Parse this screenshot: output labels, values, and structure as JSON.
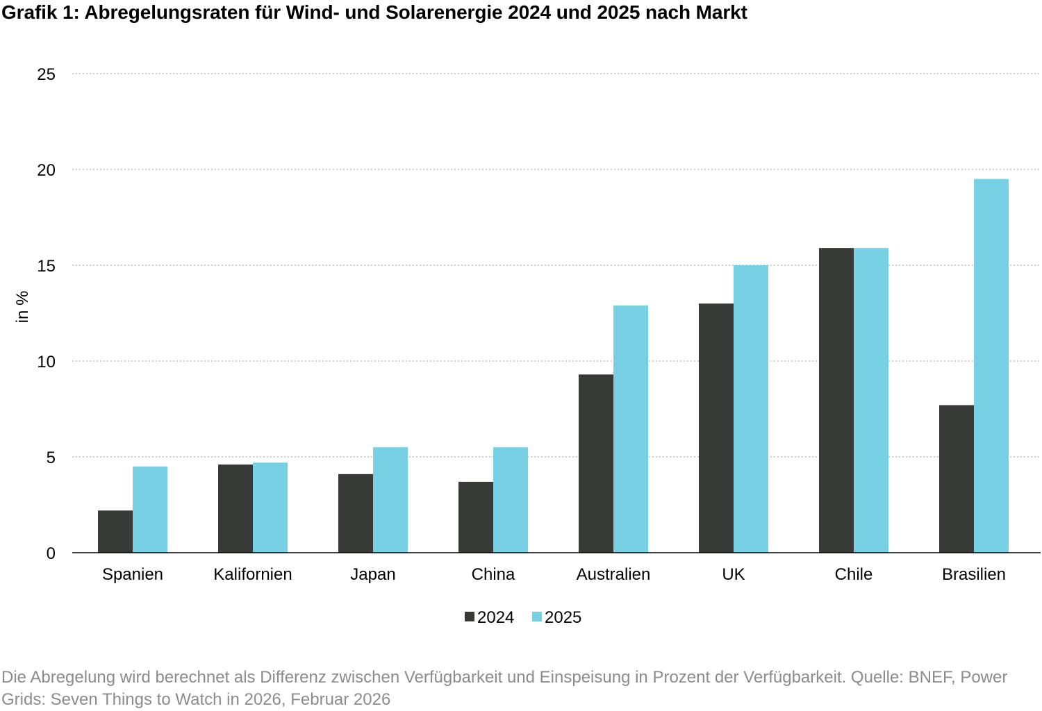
{
  "title": "Grafik 1: Abregelungsraten für Wind- und Solarenergie 2024 und 2025 nach Markt",
  "note": "Die Abregelung wird berechnet als Differenz zwischen Verfügbarkeit und Einspeisung in Prozent der Verfügbarkeit. Quelle: BNEF, Power Grids: Seven Things to Watch in 2026, Februar 2026",
  "chart_data": {
    "type": "bar",
    "title": "Grafik 1: Abregelungsraten für Wind- und Solarenergie 2024 und 2025 nach Markt",
    "xlabel": "",
    "ylabel": "in %",
    "ylim": [
      0,
      25
    ],
    "yticks": [
      0,
      5,
      10,
      15,
      20,
      25
    ],
    "grid": true,
    "legend_position": "bottom",
    "categories": [
      "Spanien",
      "Kalifornien",
      "Japan",
      "China",
      "Australien",
      "UK",
      "Chile",
      "Brasilien"
    ],
    "series": [
      {
        "name": "2024",
        "color": "#383a37",
        "values": [
          2.2,
          4.6,
          4.1,
          3.7,
          9.3,
          13.0,
          15.9,
          7.7
        ]
      },
      {
        "name": "2025",
        "color": "#77d0e3",
        "values": [
          4.5,
          4.7,
          5.5,
          5.5,
          12.9,
          15.0,
          15.9,
          19.5
        ]
      }
    ]
  }
}
